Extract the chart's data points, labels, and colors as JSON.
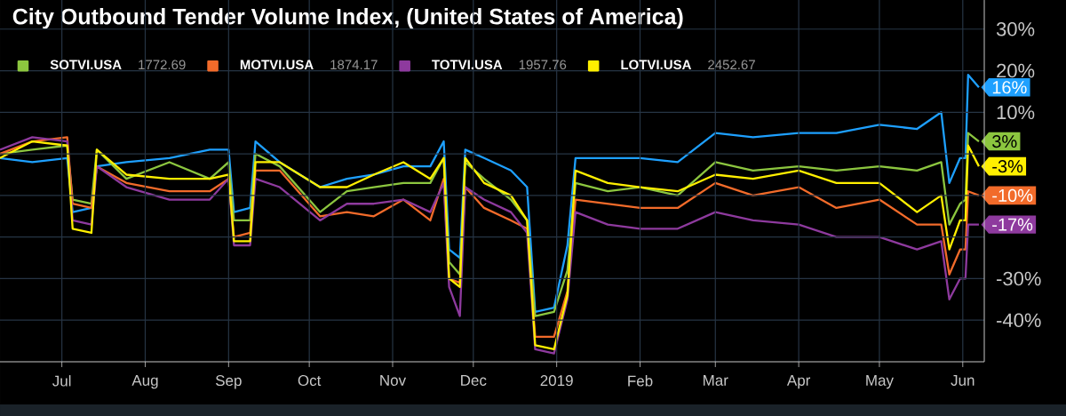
{
  "chart_data": {
    "type": "line",
    "title": "City Outbound Tender Volume Index, (United States of America)",
    "x": [
      "2018-06-08",
      "2018-06-20",
      "2018-07-03",
      "2018-07-05",
      "2018-07-12",
      "2018-07-14",
      "2018-07-25",
      "2018-08-10",
      "2018-08-25",
      "2018-09-01",
      "2018-09-03",
      "2018-09-09",
      "2018-09-11",
      "2018-09-20",
      "2018-10-05",
      "2018-10-15",
      "2018-10-25",
      "2018-11-05",
      "2018-11-15",
      "2018-11-20",
      "2018-11-22",
      "2018-11-26",
      "2018-11-28",
      "2018-12-05",
      "2018-12-15",
      "2018-12-21",
      "2018-12-24",
      "2018-12-31",
      "2019-01-05",
      "2019-01-08",
      "2019-01-20",
      "2019-02-01",
      "2019-02-15",
      "2019-03-01",
      "2019-03-15",
      "2019-04-01",
      "2019-04-15",
      "2019-05-01",
      "2019-05-15",
      "2019-05-24",
      "2019-05-27",
      "2019-05-31",
      "2019-06-02",
      "2019-06-03",
      "2019-06-07"
    ],
    "series": [
      {
        "color": "#1ea0ff",
        "values": [
          -1,
          -2,
          -1,
          -14,
          -13,
          -3,
          -2,
          -1,
          1,
          1,
          -14,
          -13,
          3,
          -2,
          -8,
          -6,
          -5,
          -3,
          -3,
          3,
          -23,
          -25,
          1,
          -1,
          -4,
          -8,
          -38,
          -37,
          -22,
          -1,
          -1,
          -1,
          -2,
          5,
          4,
          5,
          5,
          7,
          6,
          10,
          -7,
          -1,
          -1,
          19,
          16
        ],
        "value_labels": [
          null,
          null,
          null,
          null,
          null,
          null,
          null,
          null,
          null,
          null,
          null,
          null,
          null,
          null,
          null,
          null,
          null,
          null,
          null,
          null,
          null,
          null,
          null,
          null,
          null,
          null,
          null,
          null,
          null,
          null,
          null,
          null,
          null,
          null,
          null,
          null,
          null,
          null,
          null,
          null,
          null,
          null,
          null,
          null,
          "16%"
        ]
      },
      {
        "name": "SOTVI.USA",
        "color": "#8cc63f",
        "values": [
          0,
          1,
          2,
          -11,
          -12,
          1,
          -6,
          -2,
          -6,
          -2,
          -16,
          -16,
          0,
          -3,
          -14,
          -9,
          -8,
          -7,
          -7,
          -1,
          -26,
          -29,
          -2,
          -6,
          -11,
          -16,
          -39,
          -38,
          -28,
          -7,
          -9,
          -8,
          -10,
          -2,
          -4,
          -3,
          -4,
          -3,
          -4,
          -2,
          -17,
          -12,
          -11,
          5,
          3
        ],
        "value_labels": [
          null,
          null,
          null,
          null,
          null,
          null,
          null,
          null,
          null,
          null,
          null,
          null,
          null,
          null,
          null,
          null,
          null,
          null,
          null,
          null,
          null,
          null,
          null,
          null,
          null,
          null,
          null,
          null,
          null,
          null,
          null,
          null,
          null,
          null,
          null,
          null,
          null,
          null,
          null,
          null,
          null,
          null,
          null,
          null,
          "3%"
        ]
      },
      {
        "name": "MOTVI.USA",
        "color": "#f26b2a",
        "values": [
          0,
          3,
          4,
          -12,
          -13,
          -3,
          -7,
          -9,
          -9,
          -6,
          -20,
          -19,
          -4,
          -4,
          -15,
          -14,
          -15,
          -11,
          -16,
          -6,
          -30,
          -31,
          -8,
          -13,
          -16,
          -18,
          -44,
          -44,
          -33,
          -11,
          -12,
          -13,
          -13,
          -7,
          -10,
          -8,
          -13,
          -11,
          -17,
          -17,
          -29,
          -23,
          -23,
          -9,
          -10
        ],
        "value_labels": [
          null,
          null,
          null,
          null,
          null,
          null,
          null,
          null,
          null,
          null,
          null,
          null,
          null,
          null,
          null,
          null,
          null,
          null,
          null,
          null,
          null,
          null,
          null,
          null,
          null,
          null,
          null,
          null,
          null,
          null,
          null,
          null,
          null,
          null,
          null,
          null,
          null,
          null,
          null,
          null,
          null,
          null,
          null,
          null,
          "-10%"
        ]
      },
      {
        "name": "TOTVI.USA",
        "color": "#8e3a9e",
        "values": [
          1,
          4,
          3,
          -16,
          -17,
          -3,
          -8,
          -11,
          -11,
          -6,
          -22,
          -22,
          -6,
          -8,
          -16,
          -12,
          -12,
          -11,
          -14,
          -7,
          -32,
          -39,
          -8,
          -11,
          -14,
          -19,
          -47,
          -48,
          -35,
          -14,
          -17,
          -18,
          -18,
          -14,
          -16,
          -17,
          -20,
          -20,
          -23,
          -21,
          -35,
          -30,
          -30,
          -17,
          -17
        ],
        "value_labels": [
          null,
          null,
          null,
          null,
          null,
          null,
          null,
          null,
          null,
          null,
          null,
          null,
          null,
          null,
          null,
          null,
          null,
          null,
          null,
          null,
          null,
          null,
          null,
          null,
          null,
          null,
          null,
          null,
          null,
          null,
          null,
          null,
          null,
          null,
          null,
          null,
          null,
          null,
          null,
          null,
          null,
          null,
          null,
          null,
          "-17%"
        ]
      },
      {
        "name": "LOTVI.USA",
        "color": "#ffef00",
        "values": [
          -1,
          3,
          2,
          -18,
          -19,
          1,
          -5,
          -6,
          -6,
          -5,
          -21,
          -21,
          -2,
          -2,
          -8,
          -8,
          -5,
          -2,
          -6,
          -1,
          -30,
          -32,
          -1,
          -7,
          -10,
          -16,
          -46,
          -47,
          -34,
          -4,
          -7,
          -8,
          -9,
          -5,
          -6,
          -4,
          -7,
          -7,
          -14,
          -10,
          -23,
          -16,
          -16,
          2,
          -3
        ],
        "value_labels": [
          null,
          null,
          null,
          null,
          null,
          null,
          null,
          null,
          null,
          null,
          null,
          null,
          null,
          null,
          null,
          null,
          null,
          null,
          null,
          null,
          null,
          null,
          null,
          null,
          null,
          null,
          null,
          null,
          null,
          null,
          null,
          null,
          null,
          null,
          null,
          null,
          null,
          null,
          null,
          null,
          null,
          null,
          null,
          null,
          "-3%"
        ]
      }
    ],
    "annotations": [
      "1772.69",
      "1874.17",
      "1957.76",
      "2452.67"
    ],
    "xlim": [
      "2018-06-08",
      "2019-06-09"
    ],
    "xticks": [
      {
        "value": "2018-07-01",
        "label": "Jul"
      },
      {
        "value": "2018-08-01",
        "label": "Aug"
      },
      {
        "value": "2018-09-01",
        "label": "Sep"
      },
      {
        "value": "2018-10-01",
        "label": "Oct"
      },
      {
        "value": "2018-11-01",
        "label": "Nov"
      },
      {
        "value": "2018-12-01",
        "label": "Dec"
      },
      {
        "value": "2019-01-01",
        "label": "2019"
      },
      {
        "value": "2019-02-01",
        "label": "Feb"
      },
      {
        "value": "2019-03-01",
        "label": "Mar"
      },
      {
        "value": "2019-04-01",
        "label": "Apr"
      },
      {
        "value": "2019-05-01",
        "label": "May"
      },
      {
        "value": "2019-06-01",
        "label": "Jun"
      }
    ],
    "ylim": [
      -50,
      37
    ],
    "yticks": [
      {
        "value": -40,
        "label": "-40%"
      },
      {
        "value": -30,
        "label": "-30%"
      },
      {
        "value": -20,
        "label": null
      },
      {
        "value": -10,
        "label": null
      },
      {
        "value": 0,
        "label": null
      },
      {
        "value": 10,
        "label": "10%"
      },
      {
        "value": 20,
        "label": "20%"
      },
      {
        "value": 30,
        "label": "30%"
      }
    ],
    "grid": true,
    "legend": "top left",
    "marker": "none"
  }
}
